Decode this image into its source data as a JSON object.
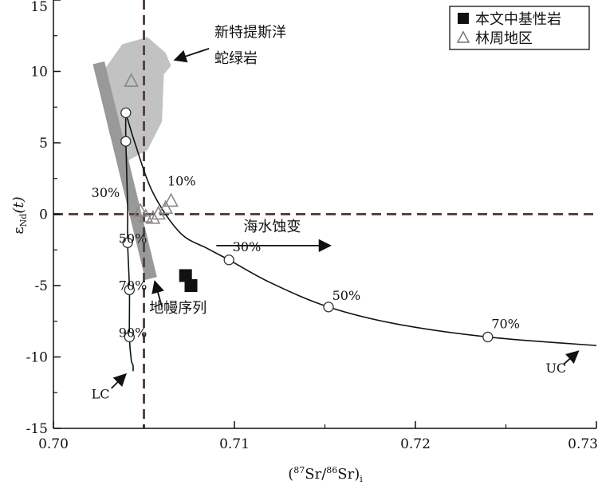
{
  "chart_data": {
    "type": "scatter",
    "x_axis": {
      "range": [
        0.7,
        0.73
      ],
      "ticks": [
        0.7,
        0.71,
        0.72,
        0.73
      ],
      "tick_labels": [
        "0.70",
        "0.71",
        "0.72",
        "0.73"
      ],
      "label_open": "(",
      "label_sup1": "87",
      "label_mid": "Sr/",
      "label_sup2": "86",
      "label_sr": "Sr)",
      "label_sub": "i"
    },
    "y_axis": {
      "range": [
        -15,
        15
      ],
      "ticks": [
        -15,
        -10,
        -5,
        0,
        5,
        10,
        15
      ],
      "tick_labels": [
        "-15",
        "-10",
        "-5",
        "0",
        "5",
        "10",
        "15"
      ],
      "label_eps": "ε",
      "label_sub": "Nd",
      "label_t": "(t)"
    },
    "reference_lines": {
      "x": 0.705,
      "y": 0
    },
    "legend": {
      "position": "top-right",
      "entries": [
        {
          "marker": "square",
          "label": "本文中基性岩"
        },
        {
          "marker": "triangle",
          "label": "林周地区"
        }
      ]
    },
    "series": [
      {
        "name": "本文中基性岩",
        "marker": "filled-square",
        "points": [
          [
            0.7073,
            -4.3
          ],
          [
            0.7076,
            -5.0
          ]
        ]
      },
      {
        "name": "林周地区",
        "marker": "open-triangle",
        "points": [
          [
            0.7043,
            9.3
          ],
          [
            0.7048,
            0.2
          ],
          [
            0.7051,
            -0.2
          ],
          [
            0.7055,
            -0.3
          ],
          [
            0.7058,
            0.0
          ],
          [
            0.7062,
            0.4
          ],
          [
            0.7065,
            0.9
          ]
        ]
      }
    ],
    "mixing_curves": [
      {
        "name": "UC",
        "x": [
          0.704,
          0.7045,
          0.7055,
          0.707,
          0.7085,
          0.7097,
          0.712,
          0.7152,
          0.719,
          0.724,
          0.73
        ],
        "y": [
          7.1,
          5.0,
          1.5,
          -1.3,
          -2.4,
          -3.2,
          -4.8,
          -6.5,
          -7.7,
          -8.6,
          -9.2
        ]
      },
      {
        "name": "LC",
        "x": [
          0.704,
          0.704,
          0.7041,
          0.7041,
          0.7042,
          0.7042,
          0.7043,
          0.7044,
          0.7044
        ],
        "y": [
          7.1,
          5.1,
          0.5,
          -2.0,
          -5.3,
          -8.6,
          -10.2,
          -10.6,
          -11.0
        ]
      }
    ],
    "mixing_points": [
      {
        "x": 0.704,
        "y": 7.1
      },
      {
        "x": 0.704,
        "y": 5.1
      },
      {
        "x": 0.7041,
        "y": -2.0
      },
      {
        "x": 0.7042,
        "y": -5.3
      },
      {
        "x": 0.7042,
        "y": -8.6
      },
      {
        "x": 0.7097,
        "y": -3.2
      },
      {
        "x": 0.7152,
        "y": -6.5
      },
      {
        "x": 0.724,
        "y": -8.6
      }
    ],
    "ophiolite_field": [
      [
        0.7028,
        10.1
      ],
      [
        0.7038,
        11.9
      ],
      [
        0.7052,
        12.4
      ],
      [
        0.7062,
        11.3
      ],
      [
        0.7065,
        10.4
      ],
      [
        0.7061,
        9.8
      ],
      [
        0.706,
        6.5
      ],
      [
        0.7052,
        4.5
      ],
      [
        0.7039,
        3.6
      ],
      [
        0.7031,
        5.6
      ],
      [
        0.7027,
        8.0
      ]
    ],
    "mantle_array": [
      [
        0.7025,
        10.6
      ],
      [
        0.7054,
        -4.5
      ]
    ],
    "annotations": [
      {
        "text": "10%",
        "x": 0.7063,
        "y": 2.0
      },
      {
        "text": "30%",
        "x": 0.7021,
        "y": 1.2
      },
      {
        "text": "50%",
        "x": 0.7036,
        "y": -2.0
      },
      {
        "text": "70%",
        "x": 0.7036,
        "y": -5.3
      },
      {
        "text": "90%",
        "x": 0.7036,
        "y": -8.6
      },
      {
        "text": "30%",
        "x": 0.7099,
        "y": -2.6
      },
      {
        "text": "50%",
        "x": 0.7154,
        "y": -6.0
      },
      {
        "text": "70%",
        "x": 0.7242,
        "y": -8.0
      },
      {
        "text": "LC",
        "x": 0.7021,
        "y": -12.9
      },
      {
        "text": "UC",
        "x": 0.7272,
        "y": -11.1
      }
    ],
    "cjk_labels": [
      {
        "text": "新特提斯洋",
        "x": 0.7089,
        "y": 12.4
      },
      {
        "text": "蛇绿岩",
        "x": 0.7089,
        "y": 10.6
      },
      {
        "text": "海水蚀变",
        "x": 0.7105,
        "y": -1.2
      },
      {
        "text": "地幔序列",
        "x": 0.7053,
        "y": -6.9
      }
    ],
    "arrows": [
      {
        "from": [
          0.7086,
          11.6
        ],
        "to": [
          0.7067,
          10.8
        ]
      },
      {
        "from": [
          0.709,
          -2.2
        ],
        "to": [
          0.7153,
          -2.2
        ]
      },
      {
        "from": [
          0.706,
          -6.5
        ],
        "to": [
          0.7056,
          -4.7
        ]
      },
      {
        "from": [
          0.7032,
          -12.2
        ],
        "to": [
          0.704,
          -11.2
        ]
      },
      {
        "from": [
          0.7282,
          -10.5
        ],
        "to": [
          0.729,
          -9.6
        ]
      }
    ]
  }
}
